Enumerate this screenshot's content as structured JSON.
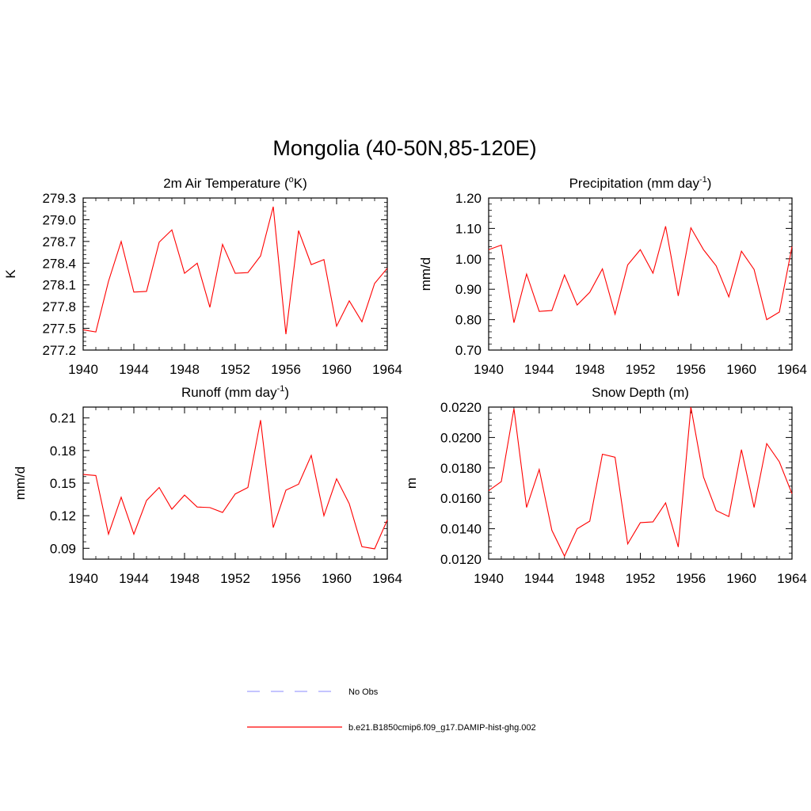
{
  "figure": {
    "title": "Mongolia (40-50N,85-120E)"
  },
  "colors": {
    "model_line": "#ff0000",
    "obs_line": "#a0a0ff",
    "axes": "#000000"
  },
  "legend": [
    {
      "label": "No Obs",
      "style": "dashed",
      "color": "#a0a0ff"
    },
    {
      "label": "b.e21.B1850cmip6.f09_g17.DAMIP-hist-ghg.002",
      "style": "solid",
      "color": "#ff0000"
    }
  ],
  "chart_data": [
    {
      "type": "line",
      "title": "2m Air Temperature (",
      "title_sup": "o",
      "title_after": "K)",
      "ylabel": "K",
      "xlim": [
        1940,
        1964
      ],
      "ylim": [
        277.2,
        279.3
      ],
      "x_ticks": [
        1940,
        1944,
        1948,
        1952,
        1956,
        1960,
        1964
      ],
      "x_tick_labels": [
        "1940",
        "1944",
        "1948",
        "1952",
        "1956",
        "1960",
        "1964"
      ],
      "y_ticks": [
        277.2,
        277.5,
        277.8,
        278.1,
        278.4,
        278.7,
        279.0,
        279.3
      ],
      "y_tick_labels": [
        "277.2",
        "277.5",
        "277.8",
        "278.1",
        "278.4",
        "278.7",
        "279.0",
        "279.3"
      ],
      "x": [
        1940,
        1941,
        1942,
        1943,
        1944,
        1945,
        1946,
        1947,
        1948,
        1949,
        1950,
        1951,
        1952,
        1953,
        1954,
        1955,
        1956,
        1957,
        1958,
        1959,
        1960,
        1961,
        1962,
        1963,
        1964
      ],
      "series": [
        {
          "values": [
            277.48,
            277.45,
            278.15,
            278.7,
            278.0,
            278.01,
            278.69,
            278.86,
            278.26,
            278.4,
            277.79,
            278.66,
            278.26,
            278.27,
            278.5,
            279.18,
            277.42,
            278.85,
            278.38,
            278.45,
            277.53,
            277.88,
            277.59,
            278.12,
            278.33
          ]
        }
      ]
    },
    {
      "type": "line",
      "title": "Precipitation (mm day",
      "title_sup": "-1",
      "title_after": ")",
      "ylabel": "mm/d",
      "xlim": [
        1940,
        1964
      ],
      "ylim": [
        0.7,
        1.2
      ],
      "x_ticks": [
        1940,
        1944,
        1948,
        1952,
        1956,
        1960,
        1964
      ],
      "x_tick_labels": [
        "1940",
        "1944",
        "1948",
        "1952",
        "1956",
        "1960",
        "1964"
      ],
      "y_ticks": [
        0.7,
        0.8,
        0.9,
        1.0,
        1.1,
        1.2
      ],
      "y_tick_labels": [
        "0.70",
        "0.80",
        "0.90",
        "1.00",
        "1.10",
        "1.20"
      ],
      "x": [
        1940,
        1941,
        1942,
        1943,
        1944,
        1945,
        1946,
        1947,
        1948,
        1949,
        1950,
        1951,
        1952,
        1953,
        1954,
        1955,
        1956,
        1957,
        1958,
        1959,
        1960,
        1961,
        1962,
        1963,
        1964
      ],
      "series": [
        {
          "values": [
            1.03,
            1.045,
            0.79,
            0.95,
            0.827,
            0.83,
            0.947,
            0.848,
            0.89,
            0.967,
            0.818,
            0.98,
            1.03,
            0.953,
            1.107,
            0.878,
            1.102,
            1.03,
            0.977,
            0.875,
            1.025,
            0.965,
            0.8,
            0.825,
            1.04
          ]
        }
      ]
    },
    {
      "type": "line",
      "title": "Runoff (mm day",
      "title_sup": "-1",
      "title_after": ")",
      "ylabel": "mm/d",
      "xlim": [
        1940,
        1964
      ],
      "ylim": [
        0.08,
        0.22
      ],
      "x_ticks": [
        1940,
        1944,
        1948,
        1952,
        1956,
        1960,
        1964
      ],
      "x_tick_labels": [
        "1940",
        "1944",
        "1948",
        "1952",
        "1956",
        "1960",
        "1964"
      ],
      "y_ticks": [
        0.09,
        0.12,
        0.15,
        0.18,
        0.21
      ],
      "y_tick_labels": [
        "0.09",
        "0.12",
        "0.15",
        "0.18",
        "0.21"
      ],
      "x": [
        1940,
        1941,
        1942,
        1943,
        1944,
        1945,
        1946,
        1947,
        1948,
        1949,
        1950,
        1951,
        1952,
        1953,
        1954,
        1955,
        1956,
        1957,
        1958,
        1959,
        1960,
        1961,
        1962,
        1963,
        1964
      ],
      "series": [
        {
          "values": [
            0.158,
            0.157,
            0.103,
            0.137,
            0.103,
            0.134,
            0.146,
            0.126,
            0.139,
            0.128,
            0.1275,
            0.123,
            0.14,
            0.146,
            0.208,
            0.109,
            0.1435,
            0.149,
            0.1755,
            0.12,
            0.154,
            0.131,
            0.0915,
            0.0895,
            0.116
          ]
        }
      ]
    },
    {
      "type": "line",
      "title": "Snow Depth (m)",
      "title_sup": "",
      "title_after": "",
      "ylabel": "m",
      "xlim": [
        1940,
        1964
      ],
      "ylim": [
        0.012,
        0.022
      ],
      "x_ticks": [
        1940,
        1944,
        1948,
        1952,
        1956,
        1960,
        1964
      ],
      "x_tick_labels": [
        "1940",
        "1944",
        "1948",
        "1952",
        "1956",
        "1960",
        "1964"
      ],
      "y_ticks": [
        0.012,
        0.014,
        0.016,
        0.018,
        0.02,
        0.022
      ],
      "y_tick_labels": [
        "0.0120",
        "0.0140",
        "0.0160",
        "0.0180",
        "0.0200",
        "0.0220"
      ],
      "x": [
        1940,
        1941,
        1942,
        1943,
        1944,
        1945,
        1946,
        1947,
        1948,
        1949,
        1950,
        1951,
        1952,
        1953,
        1954,
        1955,
        1956,
        1957,
        1958,
        1959,
        1960,
        1961,
        1962,
        1963,
        1964
      ],
      "series": [
        {
          "values": [
            0.0165,
            0.0171,
            0.0219,
            0.0154,
            0.0179,
            0.0139,
            0.0122,
            0.014,
            0.0145,
            0.0189,
            0.0187,
            0.013,
            0.0144,
            0.01445,
            0.0157,
            0.0128,
            0.022,
            0.0174,
            0.0152,
            0.0148,
            0.0192,
            0.0154,
            0.0196,
            0.0184,
            0.0163
          ]
        }
      ]
    }
  ]
}
